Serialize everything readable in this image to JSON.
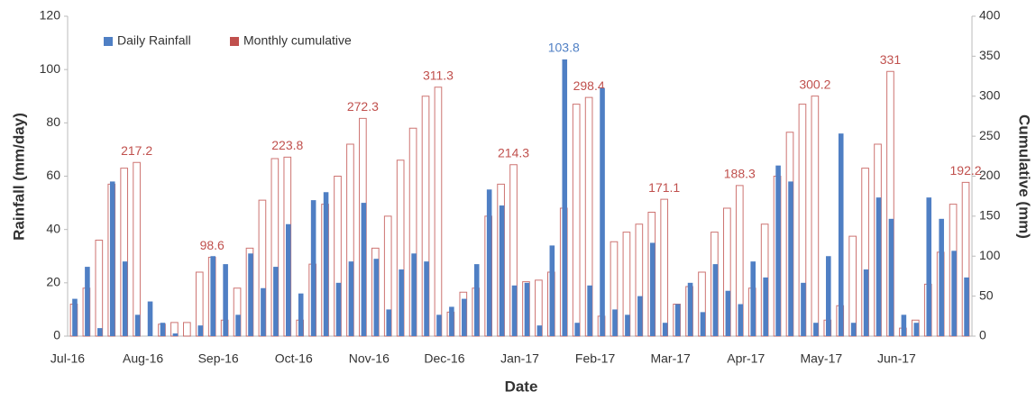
{
  "chart_data": {
    "type": "bar",
    "x_label": "Date",
    "y_label": "Rainfall (mm/day)",
    "y2_label": "Cumulative (mm)",
    "categories": [
      "Jul-16",
      null,
      null,
      null,
      null,
      null,
      "Aug-16",
      null,
      null,
      null,
      null,
      null,
      "Sep-16",
      null,
      null,
      null,
      null,
      null,
      "Oct-16",
      null,
      null,
      null,
      null,
      null,
      "Nov-16",
      null,
      null,
      null,
      null,
      null,
      "Dec-16",
      null,
      null,
      null,
      null,
      null,
      "Jan-17",
      null,
      null,
      null,
      null,
      null,
      "Feb-17",
      null,
      null,
      null,
      null,
      null,
      "Mar-17",
      null,
      null,
      null,
      null,
      null,
      "Apr-17",
      null,
      null,
      null,
      null,
      null,
      "May-17",
      null,
      null,
      null,
      null,
      null,
      "Jun-17",
      null,
      null,
      null,
      null,
      null
    ],
    "series": [
      {
        "name": "Daily Rainfall",
        "color": "#4f7fc4",
        "axis": "y",
        "values": [
          14,
          26,
          3,
          58,
          28,
          8,
          13,
          5,
          1,
          0,
          4,
          30,
          27,
          8,
          31,
          18,
          26,
          42,
          16,
          51,
          54,
          20,
          28,
          50,
          29,
          10,
          25,
          31,
          28,
          8,
          11,
          14,
          27,
          55,
          49,
          19,
          20,
          4,
          34,
          103.8,
          5,
          19,
          93,
          10,
          8,
          15,
          35,
          5,
          12,
          20,
          9,
          27,
          17,
          12,
          28,
          22,
          64,
          58,
          20,
          5,
          30,
          76,
          5,
          25,
          52,
          44,
          8,
          5,
          52,
          44,
          32,
          22
        ],
        "value_labels": [
          null,
          null,
          null,
          null,
          null,
          null,
          null,
          null,
          null,
          null,
          null,
          null,
          null,
          null,
          null,
          null,
          null,
          null,
          null,
          null,
          null,
          null,
          null,
          null,
          null,
          null,
          null,
          null,
          null,
          null,
          null,
          null,
          null,
          null,
          null,
          null,
          null,
          null,
          null,
          "103.8",
          null,
          null,
          null,
          null,
          null,
          null,
          null,
          null,
          null,
          null,
          null,
          null,
          null,
          null,
          null,
          null,
          null,
          null,
          null,
          null,
          null,
          null,
          null,
          null,
          null,
          null,
          null,
          null,
          null,
          null,
          null,
          null
        ]
      },
      {
        "name": "Monthly cumulative",
        "color": "#c0504d",
        "axis": "y2",
        "values": [
          40,
          60,
          120,
          190,
          210,
          217.2,
          0,
          15,
          17,
          17,
          80,
          98.6,
          20,
          60,
          110,
          170,
          222,
          223.8,
          20,
          90,
          165,
          200,
          240,
          272.3,
          110,
          150,
          220,
          260,
          300,
          311.3,
          30,
          55,
          60,
          150,
          190,
          214.3,
          68,
          70,
          80,
          160,
          290,
          298.4,
          25,
          118,
          130,
          140,
          155,
          171.1,
          40,
          62,
          80,
          130,
          160,
          188.3,
          60,
          140,
          200,
          255,
          290,
          300.2,
          20,
          38,
          125,
          210,
          240,
          331,
          10,
          20,
          65,
          105,
          165,
          192.2
        ],
        "value_labels": [
          null,
          null,
          null,
          null,
          null,
          "217.2",
          null,
          null,
          null,
          null,
          null,
          "98.6",
          null,
          null,
          null,
          null,
          null,
          "223.8",
          null,
          null,
          null,
          null,
          null,
          "272.3",
          null,
          null,
          null,
          null,
          null,
          "311.3",
          null,
          null,
          null,
          null,
          null,
          "214.3",
          null,
          null,
          null,
          null,
          null,
          "298.4",
          null,
          null,
          null,
          null,
          null,
          "171.1",
          null,
          null,
          null,
          null,
          null,
          "188.3",
          null,
          null,
          null,
          null,
          null,
          "300.2",
          null,
          null,
          null,
          null,
          null,
          "331",
          null,
          null,
          null,
          null,
          null,
          "192.2"
        ]
      }
    ],
    "ylim": [
      0,
      120
    ],
    "yticks": [
      0,
      20,
      40,
      60,
      80,
      100,
      120
    ],
    "y2lim": [
      0,
      400
    ],
    "y2ticks": [
      0,
      50,
      100,
      150,
      200,
      250,
      300,
      350,
      400
    ],
    "grid": false,
    "legend": "top-left"
  }
}
